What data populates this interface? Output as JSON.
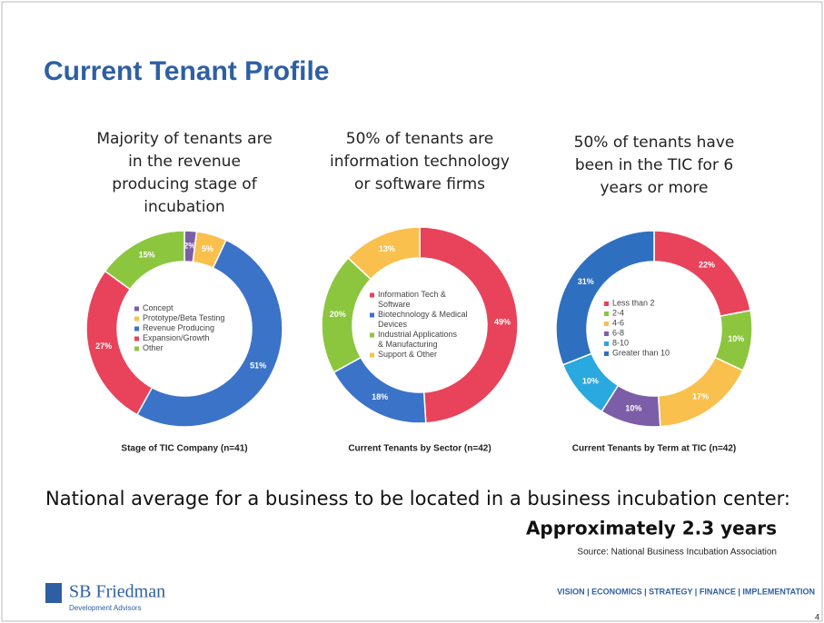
{
  "title": "Current Tenant Profile",
  "chart_data": [
    {
      "type": "pie",
      "subtitle": [
        "Majority of tenants are",
        "in the revenue",
        "producing stage of",
        "incubation"
      ],
      "caption": "Stage of TIC Company (n=41)",
      "categories": [
        "Concept",
        "Prototype/Beta Testing",
        "Revenue Producing",
        "Expansion/Growth",
        "Other"
      ],
      "values": [
        2,
        5,
        51,
        27,
        15
      ],
      "value_labels": [
        "2%",
        "5%",
        "51%",
        "27%",
        "15%"
      ],
      "colors": [
        "#7b5ea7",
        "#f9c04d",
        "#3b73c8",
        "#e8435a",
        "#8cc63f"
      ]
    },
    {
      "type": "pie",
      "subtitle": [
        "50% of tenants are",
        "information technology",
        "or software firms"
      ],
      "caption": "Current Tenants by Sector (n=42)",
      "categories": [
        "Information Tech & Software",
        "Biotechnology & Medical Devices",
        "Industrial Applications & Manufacturing",
        "Support & Other"
      ],
      "values": [
        49,
        18,
        20,
        13
      ],
      "value_labels": [
        "49%",
        "18%",
        "20%",
        "13%"
      ],
      "colors": [
        "#e8435a",
        "#3b73c8",
        "#8cc63f",
        "#f9c04d"
      ]
    },
    {
      "type": "pie",
      "subtitle": [
        "50% of tenants have",
        "been in the TIC for 6",
        "years or more"
      ],
      "caption": "Current Tenants by Term at TIC (n=42)",
      "categories": [
        "Less than 2",
        "2-4",
        "4-6",
        "6-8",
        "8-10",
        "Greater than 10"
      ],
      "values": [
        22,
        10,
        17,
        10,
        10,
        31
      ],
      "value_labels": [
        "22%",
        "10%",
        "17%",
        "10%",
        "10%",
        "31%"
      ],
      "colors": [
        "#e8435a",
        "#8cc63f",
        "#f9c04d",
        "#7b5ea7",
        "#2aa8e0",
        "#2f6fbf"
      ]
    }
  ],
  "note": "National average for a business to be located in a business incubation center:",
  "highlight": "Approximately 2.3 years",
  "source": "Source: National Business Incubation Association",
  "logo": {
    "name": "SB Friedman",
    "tagline": "Development Advisors"
  },
  "footer": "VISION | ECONOMICS | STRATEGY | FINANCE | IMPLEMENTATION",
  "page_number": "4"
}
